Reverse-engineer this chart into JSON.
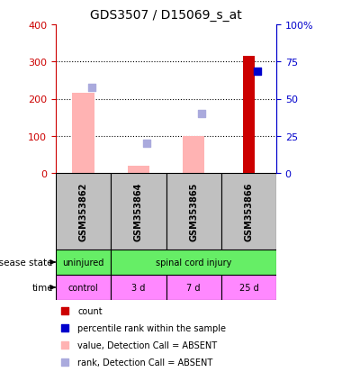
{
  "title": "GDS3507 / D15069_s_at",
  "samples": [
    "GSM353862",
    "GSM353864",
    "GSM353865",
    "GSM353866"
  ],
  "left_ylim": [
    0,
    400
  ],
  "right_ylim": [
    0,
    100
  ],
  "left_yticks": [
    0,
    100,
    200,
    300,
    400
  ],
  "right_yticks": [
    0,
    25,
    50,
    75,
    100
  ],
  "right_yticklabels": [
    "0",
    "25",
    "50",
    "75",
    "100%"
  ],
  "value_absent_bars": [
    215,
    20,
    100,
    0
  ],
  "rank_absent_markers": [
    230,
    80,
    160,
    0
  ],
  "count_bars": [
    0,
    0,
    0,
    315
  ],
  "percentile_rank_markers": [
    0,
    0,
    0,
    275
  ],
  "color_value_absent": "#FFB3B3",
  "color_rank_absent": "#AAAADD",
  "color_count": "#CC0000",
  "color_percentile_rank": "#0000CC",
  "time_labels": [
    "control",
    "3 d",
    "7 d",
    "25 d"
  ],
  "disease_uninjured_label": "uninjured",
  "disease_spinal_label": "spinal cord injury",
  "sample_bg_color": "#C0C0C0",
  "disease_color": "#66EE66",
  "time_color": "#FF88FF",
  "left_tick_color": "#CC0000",
  "right_tick_color": "#0000CC",
  "legend_items": [
    {
      "color": "#CC0000",
      "label": "count"
    },
    {
      "color": "#0000CC",
      "label": "percentile rank within the sample"
    },
    {
      "color": "#FFB3B3",
      "label": "value, Detection Call = ABSENT"
    },
    {
      "color": "#AAAADD",
      "label": "rank, Detection Call = ABSENT"
    }
  ]
}
